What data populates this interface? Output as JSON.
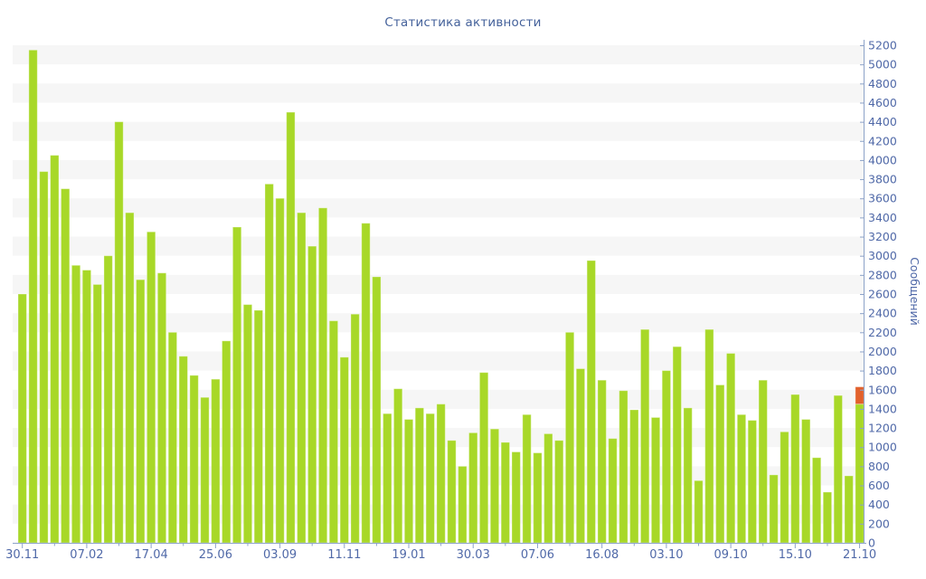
{
  "chart_data": {
    "type": "bar",
    "title": "Статистика активности",
    "xlabel": "",
    "ylabel": "Сообщений",
    "ylim": [
      0,
      5200
    ],
    "ytick_step": 200,
    "grid": "striped-horizontal-bands",
    "legend_position": "none",
    "bar_color": "#a8d828",
    "bar_highlight_color": "#e2612c",
    "band_color": "#f6f6f6",
    "axis_line_color": "#8ca2c8",
    "axis_text_color": "#5069a8",
    "title_color": "#45629b",
    "xtick_labels": [
      "30.11",
      "07.02",
      "17.04",
      "25.06",
      "03.09",
      "11.11",
      "19.01",
      "30.03",
      "07.06",
      "16.08",
      "03.10",
      "09.10",
      "15.10",
      "21.10"
    ],
    "xtick_every_n_bars": 6,
    "values": [
      2600,
      5150,
      3880,
      4050,
      3700,
      2900,
      2850,
      2700,
      3000,
      4400,
      3450,
      2750,
      3250,
      2820,
      2200,
      1950,
      1750,
      1520,
      1710,
      2110,
      3300,
      2490,
      2430,
      3750,
      3600,
      4500,
      3450,
      3100,
      3500,
      2320,
      1940,
      2390,
      3340,
      2780,
      1350,
      1610,
      1290,
      1410,
      1350,
      1450,
      1070,
      800,
      1150,
      1780,
      1190,
      1050,
      950,
      1340,
      940,
      1140,
      1070,
      2200,
      1820,
      2950,
      1700,
      1090,
      1590,
      1390,
      2230,
      1310,
      1800,
      2050,
      1410,
      650,
      2230,
      1650,
      1980,
      1340,
      1280,
      1700,
      710,
      1160,
      1550,
      1290,
      890,
      530,
      1540,
      700,
      1630
    ],
    "last_bar": {
      "total": 1630,
      "green_part": 1450,
      "orange_part": 180
    }
  }
}
